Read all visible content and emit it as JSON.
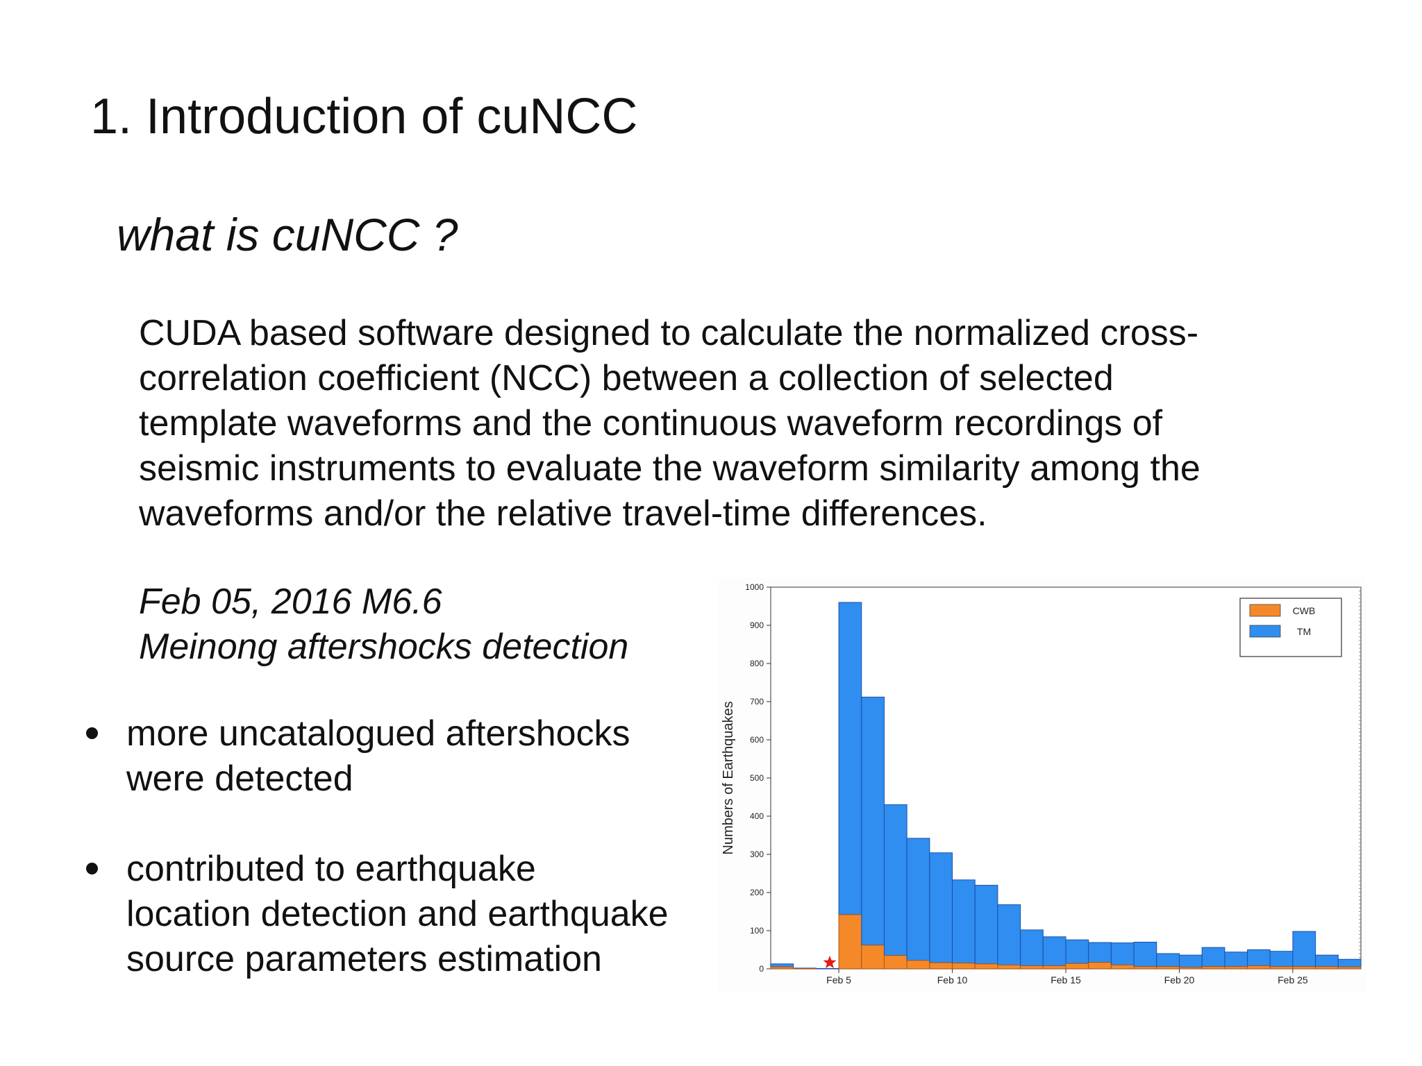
{
  "slide": {
    "title": "1. Introduction of cuNCC",
    "subtitle": "what is cuNCC ?",
    "description_lines": [
      "CUDA based software designed to calculate the normalized cross-",
      "correlation coefficient (NCC) between a collection of selected",
      "template waveforms and the continuous waveform recordings of",
      "seismic instruments to evaluate the waveform similarity among the",
      "waveforms and/or the relative travel-time differences."
    ],
    "event_lines": [
      "Feb 05, 2016 M6.6",
      "Meinong aftershocks detection"
    ],
    "bullets": [
      {
        "lines": [
          "more uncatalogued aftershocks",
          "were detected"
        ]
      },
      {
        "lines": [
          "contributed to earthquake",
          "location detection and earthquake",
          "source parameters estimation"
        ]
      }
    ]
  },
  "chart_data": {
    "type": "bar",
    "stacked": true,
    "ylabel": "Numbers of Earthquakes",
    "xlabel": "",
    "ylim": [
      0,
      1000
    ],
    "yticks": [
      0,
      100,
      200,
      300,
      400,
      500,
      600,
      700,
      800,
      900,
      1000
    ],
    "x_day_start": 2,
    "xticks": [
      {
        "day": 5,
        "label": "Feb 5"
      },
      {
        "day": 10,
        "label": "Feb 10"
      },
      {
        "day": 15,
        "label": "Feb 15"
      },
      {
        "day": 20,
        "label": "Feb 20"
      },
      {
        "day": 25,
        "label": "Feb 25"
      }
    ],
    "categories": [
      "Feb 2",
      "Feb 3",
      "Feb 4",
      "Feb 5",
      "Feb 6",
      "Feb 7",
      "Feb 8",
      "Feb 9",
      "Feb 10",
      "Feb 11",
      "Feb 12",
      "Feb 13",
      "Feb 14",
      "Feb 15",
      "Feb 16",
      "Feb 17",
      "Feb 18",
      "Feb 19",
      "Feb 20",
      "Feb 21",
      "Feb 22",
      "Feb 23",
      "Feb 24",
      "Feb 25",
      "Feb 26",
      "Feb 27"
    ],
    "series": [
      {
        "name": "CWB",
        "color": "#f5892a",
        "values": [
          5,
          1,
          0,
          142,
          62,
          35,
          22,
          16,
          15,
          13,
          10,
          8,
          8,
          14,
          17,
          10,
          6,
          6,
          4,
          6,
          6,
          8,
          6,
          6,
          6,
          5
        ]
      },
      {
        "name": "TM",
        "color": "#2f8ef0",
        "values": [
          8,
          1,
          1,
          818,
          650,
          395,
          320,
          288,
          218,
          206,
          158,
          94,
          76,
          62,
          52,
          58,
          64,
          34,
          32,
          50,
          38,
          42,
          40,
          92,
          30,
          20
        ]
      }
    ],
    "mainshock_marker": {
      "day": 4.6,
      "color": "#e01b1b",
      "shape": "star"
    },
    "legend_position": "top-right",
    "grid": false
  }
}
